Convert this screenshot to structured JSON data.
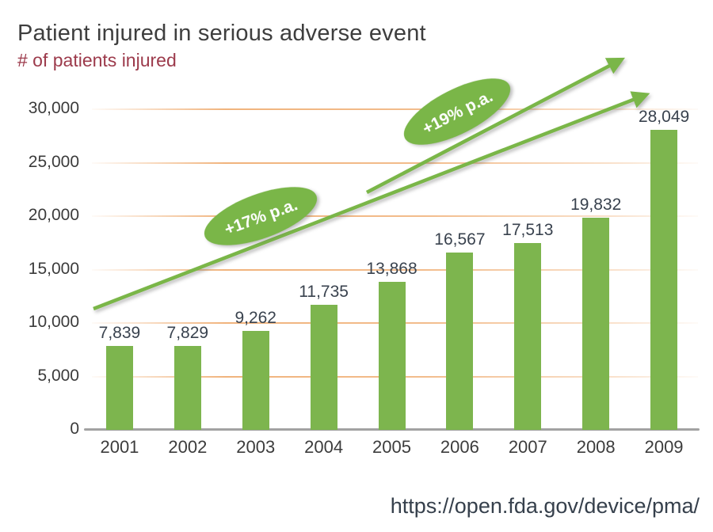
{
  "header": {
    "title": "Patient injured in serious adverse event",
    "subtitle": "# of patients injured"
  },
  "source": {
    "url_text": "https://open.fda.gov/device/pma/"
  },
  "colors": {
    "bar_green": "#7db54e",
    "arrow_green": "#7ab648",
    "gridline_orange": "#eea666",
    "title_gray": "#3e3e3e",
    "subtitle_maroon": "#9c3a4b",
    "value_label_dark": "#39424e",
    "axis_gray": "#a2a2a2",
    "url_dark": "#36404c"
  },
  "chart_data": {
    "type": "bar",
    "title": "Patient injured in serious adverse event",
    "subtitle": "# of patients injured",
    "xlabel": "",
    "ylabel": "# of patients injured",
    "categories": [
      "2001",
      "2002",
      "2003",
      "2004",
      "2005",
      "2006",
      "2007",
      "2008",
      "2009"
    ],
    "values": [
      7839,
      7829,
      9262,
      11735,
      13868,
      16567,
      17513,
      19832,
      28049
    ],
    "value_labels": [
      "7,839",
      "7,829",
      "9,262",
      "11,735",
      "13,868",
      "16,567",
      "17,513",
      "19,832",
      "28,049"
    ],
    "ylim": [
      0,
      30000
    ],
    "yticks": [
      {
        "value": 0,
        "label": "0"
      },
      {
        "value": 5000,
        "label": "5,000"
      },
      {
        "value": 10000,
        "label": "10,000"
      },
      {
        "value": 15000,
        "label": "15,000"
      },
      {
        "value": 20000,
        "label": "20,000"
      },
      {
        "value": 25000,
        "label": "25,000"
      },
      {
        "value": 30000,
        "label": "30,000"
      }
    ],
    "grid": "horizontal-orange-lines",
    "legend": "none",
    "annotations": [
      "+17% p.a.",
      "+19% p.a."
    ],
    "source": "https://open.fda.gov/device/pma/"
  }
}
